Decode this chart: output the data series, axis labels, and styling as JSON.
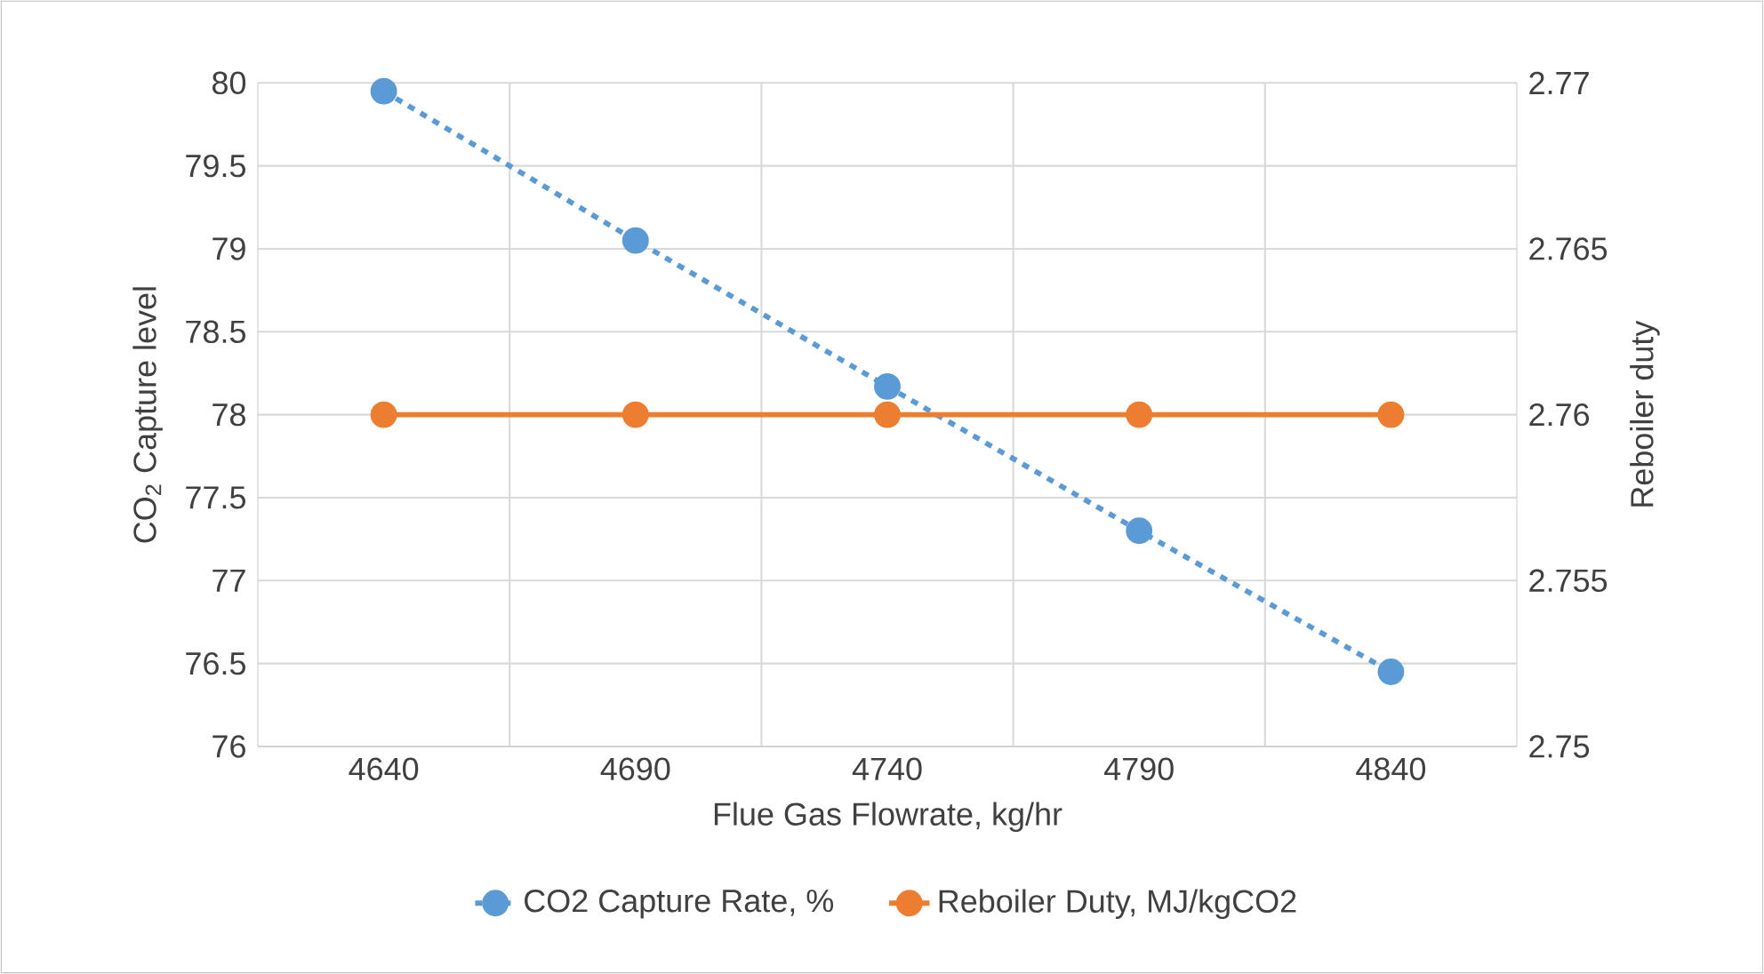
{
  "chart_data": {
    "type": "line",
    "xlabel": "Flue Gas Flowrate, kg/hr",
    "ylabel": "CO$_{2}$ Capture level",
    "y2label": "Reboiler duty",
    "categories": [
      "4640",
      "4690",
      "4740",
      "4790",
      "4840"
    ],
    "series": [
      {
        "name": "CO2 Capture Rate, %",
        "color": "#5b9bd5",
        "values": [
          79.95,
          79.05,
          78.17,
          77.3,
          76.45
        ],
        "marker": "circle",
        "line_style": "dashed"
      },
      {
        "name": "Reboiler Duty, MJ/kgCO2",
        "color": "#ed7d31",
        "values": [
          2.76,
          2.76,
          2.76,
          2.76,
          2.76
        ],
        "marker": "circle",
        "line_style": "solid",
        "axis": "y2"
      }
    ],
    "ylim": [
      76,
      80
    ],
    "yticks": [
      76,
      76.5,
      77,
      77.5,
      78,
      78.5,
      79,
      79.5,
      80
    ],
    "y2lim": [
      2.75,
      2.77
    ],
    "y2ticks": [
      2.75,
      2.755,
      2.76,
      2.765,
      2.77
    ],
    "grid": true,
    "legend": "bottom"
  }
}
